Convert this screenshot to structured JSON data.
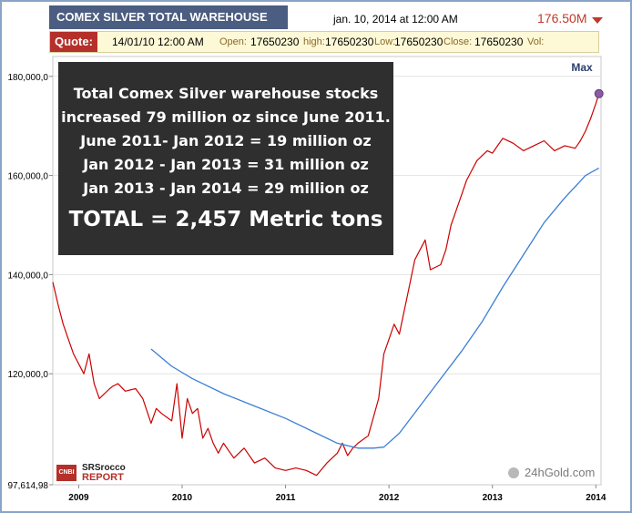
{
  "header": {
    "title": "COMEX SILVER TOTAL WAREHOUSE",
    "date": "jan. 10, 2014 at 12:00 AM",
    "price": "176.50M"
  },
  "quote": {
    "label": "Quote:",
    "datetime": "14/01/10 12:00 AM",
    "open_label": "Open:",
    "open": "17650230",
    "high_label": "high:",
    "high": "17650230",
    "low_label": "Low:",
    "low": "17650230",
    "close_label": "Close:",
    "close": "17650230",
    "vol_label": "Vol:"
  },
  "overlay": {
    "line1": "Total Comex Silver warehouse stocks",
    "line2": "increased 79 million oz since June 2011.",
    "line3": "June 2011- Jan 2012 = 19 million oz",
    "line4": "Jan 2012 - Jan 2013 = 31 million oz",
    "line5": "Jan 2013 - Jan 2014 = 29 million oz",
    "line6": "TOTAL = 2,457 Metric tons"
  },
  "logo": {
    "box": "CNBI",
    "line1": "SRSrocco",
    "line2": "REPORT"
  },
  "watermark": "24hGold.com",
  "colors": {
    "price_line": "#cc0000",
    "moving_average": "#3a7fd5",
    "max_marker": "#8c5aa6",
    "title_bg": "#4b5d80",
    "quote_label_bg": "#b5302a"
  },
  "chart_data": {
    "type": "line",
    "title": "COMEX SILVER TOTAL WAREHOUSE",
    "xlabel": "",
    "ylabel": "",
    "x_ticks": [
      "2009",
      "2010",
      "2011",
      "2012",
      "2013",
      "2014"
    ],
    "y_ticks": [
      "97,614,98",
      "120,000,0",
      "140,000,0",
      "160,000,0",
      "180,000,0"
    ],
    "xlim": [
      2008.75,
      2014.05
    ],
    "ylim": [
      97614.98,
      184000
    ],
    "annotation": "Max",
    "series": [
      {
        "x": [
          2008.75,
          2008.8,
          2008.85,
          2008.9,
          2008.95,
          2009.0,
          2009.05,
          2009.1,
          2009.15,
          2009.2,
          2009.3,
          2009.33,
          2009.38,
          2009.45,
          2009.55,
          2009.62,
          2009.7,
          2009.75,
          2009.8,
          2009.9,
          2009.95,
          2010.0,
          2010.05,
          2010.1,
          2010.15,
          2010.2,
          2010.25,
          2010.3,
          2010.35,
          2010.4,
          2010.5,
          2010.6,
          2010.7,
          2010.8,
          2010.9,
          2011.0,
          2011.1,
          2011.2,
          2011.3,
          2011.4,
          2011.5,
          2011.55,
          2011.6,
          2011.65,
          2011.7,
          2011.8,
          2011.9,
          2011.95,
          2012.0,
          2012.05,
          2012.1,
          2012.15,
          2012.2,
          2012.25,
          2012.3,
          2012.35,
          2012.4,
          2012.5,
          2012.55,
          2012.6,
          2012.65,
          2012.7,
          2012.75,
          2012.8,
          2012.85,
          2012.9,
          2012.95,
          2013.0,
          2013.05,
          2013.1,
          2013.2,
          2013.3,
          2013.4,
          2013.5,
          2013.6,
          2013.7,
          2013.8,
          2013.85,
          2013.9,
          2013.95,
          2014.0,
          2014.03
        ],
        "y": [
          138500,
          134000,
          130000,
          127000,
          124000,
          122000,
          120000,
          124000,
          118000,
          115000,
          117000,
          117500,
          118000,
          116500,
          117000,
          115000,
          110000,
          113000,
          112000,
          110500,
          118000,
          107000,
          115000,
          112000,
          113000,
          107000,
          109000,
          106000,
          104000,
          106000,
          103000,
          105000,
          102000,
          103000,
          101000,
          100500,
          101000,
          100500,
          99500,
          102000,
          104000,
          106000,
          103500,
          105000,
          106000,
          107500,
          115000,
          124000,
          127000,
          130000,
          128000,
          133000,
          138000,
          143000,
          145000,
          147000,
          141000,
          142000,
          145000,
          150000,
          153000,
          156000,
          159000,
          161000,
          163000,
          164000,
          165000,
          164500,
          166000,
          167500,
          166500,
          165000,
          166000,
          167000,
          165000,
          166000,
          165500,
          167000,
          169000,
          171500,
          174500,
          176500
        ]
      },
      {
        "x": [
          2009.7,
          2009.9,
          2010.1,
          2010.4,
          2010.7,
          2011.0,
          2011.3,
          2011.5,
          2011.7,
          2011.85,
          2011.95,
          2012.1,
          2012.3,
          2012.5,
          2012.7,
          2012.9,
          2013.1,
          2013.3,
          2013.5,
          2013.7,
          2013.9,
          2014.03
        ],
        "y": [
          125000,
          121500,
          119000,
          116000,
          113500,
          111000,
          108000,
          106000,
          105000,
          105000,
          105200,
          108000,
          113500,
          119000,
          124500,
          130500,
          137500,
          144000,
          150500,
          155500,
          160000,
          161500
        ]
      }
    ]
  }
}
